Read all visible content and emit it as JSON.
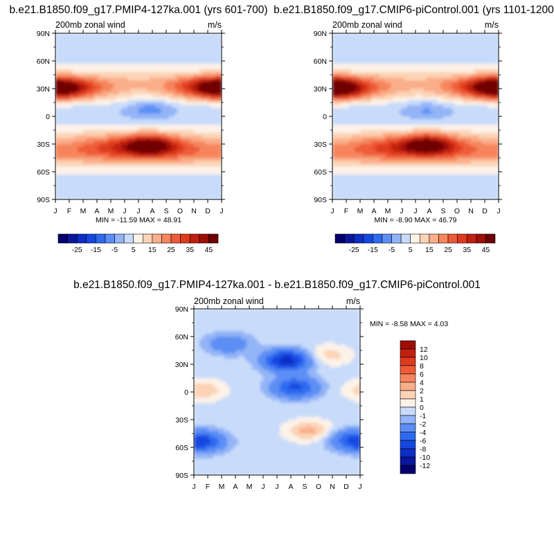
{
  "chart_data": [
    {
      "type": "heatmap",
      "title": "b.e21.B1850.f09_g17.PMIP4-127ka.001 (yrs 601-700)",
      "left_label": "200mb zonal wind",
      "right_label": "m/s",
      "x_tick_labels": [
        "J",
        "F",
        "M",
        "A",
        "M",
        "J",
        "J",
        "A",
        "S",
        "O",
        "N",
        "D",
        "J"
      ],
      "y_tick_labels": [
        "90N",
        "60N",
        "30N",
        "0",
        "30S",
        "60S",
        "90S"
      ],
      "y_range": [
        -90,
        90
      ],
      "min_max_text": "MIN = -11.59 MAX =  48.91",
      "min": -11.59,
      "max": 48.91,
      "colorbar": {
        "orientation": "horizontal",
        "levels": [
          -30,
          -25,
          -20,
          -15,
          -10,
          -5,
          0,
          5,
          10,
          15,
          20,
          25,
          30,
          35,
          40,
          45
        ],
        "tick_labels": [
          "-25",
          "-15",
          "-5",
          "5",
          "15",
          "25",
          "35",
          "45"
        ],
        "colors": [
          "#03006d",
          "#0a169b",
          "#0d2ec4",
          "#1546df",
          "#2e6af0",
          "#5b8ef4",
          "#93b4f7",
          "#c8dbfb",
          "#fdf2e8",
          "#fcd3b6",
          "#faae89",
          "#f6855d",
          "#ee5b37",
          "#de3a1e",
          "#c12010",
          "#9b0f07",
          "#6f0003"
        ]
      },
      "features": [
        {
          "lat": 30,
          "month": 0.6,
          "value": 40
        },
        {
          "lat": 32,
          "month": 11.2,
          "value": 36
        },
        {
          "lat": -31,
          "month": 6.8,
          "value": 48.9
        },
        {
          "lat": 8,
          "month": 6.8,
          "value": -11.6
        }
      ]
    },
    {
      "type": "heatmap",
      "title": "b.e21.B1850.f09_g17.CMIP6-piControl.001 (yrs 1101-1200)",
      "left_label": "200mb zonal wind",
      "right_label": "m/s",
      "x_tick_labels": [
        "J",
        "F",
        "M",
        "A",
        "M",
        "J",
        "J",
        "A",
        "S",
        "O",
        "N",
        "D",
        "J"
      ],
      "y_tick_labels": [
        "90N",
        "60N",
        "30N",
        "0",
        "30S",
        "60S",
        "90S"
      ],
      "y_range": [
        -90,
        90
      ],
      "min_max_text": "MIN = -8.90 MAX =  46.79",
      "min": -8.9,
      "max": 46.79,
      "colorbar": {
        "orientation": "horizontal",
        "levels": [
          -30,
          -25,
          -20,
          -15,
          -10,
          -5,
          0,
          5,
          10,
          15,
          20,
          25,
          30,
          35,
          40,
          45
        ],
        "tick_labels": [
          "-25",
          "-15",
          "-5",
          "5",
          "15",
          "25",
          "35",
          "45"
        ],
        "colors": [
          "#03006d",
          "#0a169b",
          "#0d2ec4",
          "#1546df",
          "#2e6af0",
          "#5b8ef4",
          "#93b4f7",
          "#c8dbfb",
          "#fdf2e8",
          "#fcd3b6",
          "#faae89",
          "#f6855d",
          "#ee5b37",
          "#de3a1e",
          "#c12010",
          "#9b0f07",
          "#6f0003"
        ]
      },
      "features": [
        {
          "lat": 30,
          "month": 0.6,
          "value": 43
        },
        {
          "lat": 32,
          "month": 11.3,
          "value": 38
        },
        {
          "lat": -30,
          "month": 6.9,
          "value": 46.8
        },
        {
          "lat": 7,
          "month": 6.8,
          "value": -8.9
        }
      ]
    },
    {
      "type": "heatmap",
      "title": "b.e21.B1850.f09_g17.PMIP4-127ka.001 - b.e21.B1850.f09_g17.CMIP6-piControl.001",
      "left_label": "200mb zonal wind",
      "right_label": "m/s",
      "x_tick_labels": [
        "J",
        "F",
        "M",
        "A",
        "M",
        "J",
        "J",
        "A",
        "S",
        "O",
        "N",
        "D",
        "J"
      ],
      "y_tick_labels": [
        "90N",
        "60N",
        "30N",
        "0",
        "30S",
        "60S",
        "90S"
      ],
      "y_range": [
        -90,
        90
      ],
      "min_max_text": "MIN =  -8.58 MAX =   4.03",
      "min": -8.58,
      "max": 4.03,
      "colorbar": {
        "orientation": "vertical",
        "levels": [
          -12,
          -10,
          -8,
          -6,
          -4,
          -2,
          -1,
          0,
          1,
          2,
          4,
          6,
          8,
          10,
          12
        ],
        "tick_labels": [
          "-12",
          "-10",
          "-8",
          "-6",
          "-4",
          "-2",
          "-1",
          "0",
          "1",
          "2",
          "4",
          "6",
          "8",
          "10",
          "12"
        ],
        "colors": [
          "#03006d",
          "#0a169b",
          "#0d2ec4",
          "#1546df",
          "#2e6af0",
          "#5b8ef4",
          "#93b4f7",
          "#c8dbfb",
          "#fdf2e8",
          "#fcd3b6",
          "#faae89",
          "#f6855d",
          "#ee5b37",
          "#de3a1e",
          "#c12010",
          "#9b0f07"
        ]
      },
      "features": [
        {
          "lat": 34,
          "month": 6.7,
          "value": -8.58
        },
        {
          "lat": 5,
          "month": 7.3,
          "value": -6
        },
        {
          "lat": -54,
          "month": 0.7,
          "value": -5
        },
        {
          "lat": -52,
          "month": 11.3,
          "value": -4
        },
        {
          "lat": 52,
          "month": 2.5,
          "value": -3
        },
        {
          "lat": -42,
          "month": 8.3,
          "value": 3
        },
        {
          "lat": 2,
          "month": 0.6,
          "value": 2.5
        },
        {
          "lat": 40,
          "month": 9.8,
          "value": 2
        }
      ]
    }
  ]
}
